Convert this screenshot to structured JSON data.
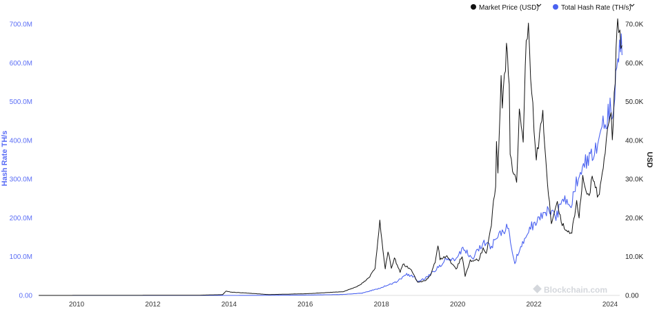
{
  "chart_data": {
    "type": "line",
    "grid": false,
    "legend_position": "top-right",
    "watermark": "Blockchain.com",
    "colors": {
      "price": "#111111",
      "hash": "#4a62f0",
      "left_axis_text": "#5b6ef5",
      "right_axis_text": "#222222",
      "x_axis_text": "#333333"
    },
    "x_axis": {
      "ticks": [
        "2010",
        "2012",
        "2014",
        "2016",
        "2018",
        "2020",
        "2022",
        "2024"
      ],
      "range": [
        "2009-01-03",
        "2024-05-01"
      ]
    },
    "left_axis": {
      "label": "Hash Rate TH/s",
      "ticks": [
        "0.00",
        "100.0M",
        "200.0M",
        "300.0M",
        "400.0M",
        "500.0M",
        "600.0M",
        "700.0M"
      ],
      "range": [
        0,
        700000000
      ]
    },
    "right_axis": {
      "label": "USD",
      "ticks": [
        "0.00",
        "10.0K",
        "20.0K",
        "30.0K",
        "40.0K",
        "50.0K",
        "60.0K",
        "70.0K"
      ],
      "range": [
        0,
        70000
      ]
    },
    "series": [
      {
        "name": "Market Price (USD)",
        "axis": "right",
        "points": [
          [
            "2009-01-03",
            0
          ],
          [
            "2013-03-01",
            40
          ],
          [
            "2013-11-01",
            200
          ],
          [
            "2013-12-04",
            1150
          ],
          [
            "2014-01-15",
            850
          ],
          [
            "2014-06-01",
            640
          ],
          [
            "2015-01-15",
            220
          ],
          [
            "2016-01-01",
            430
          ],
          [
            "2016-12-31",
            960
          ],
          [
            "2017-06-01",
            2500
          ],
          [
            "2017-09-01",
            4500
          ],
          [
            "2017-11-01",
            7000
          ],
          [
            "2017-12-17",
            19300
          ],
          [
            "2018-01-15",
            12000
          ],
          [
            "2018-02-06",
            7000
          ],
          [
            "2018-03-05",
            11500
          ],
          [
            "2018-04-06",
            6800
          ],
          [
            "2018-05-05",
            9700
          ],
          [
            "2018-06-29",
            5900
          ],
          [
            "2018-07-25",
            8200
          ],
          [
            "2018-10-15",
            6500
          ],
          [
            "2018-12-15",
            3300
          ],
          [
            "2019-03-01",
            3900
          ],
          [
            "2019-04-15",
            5200
          ],
          [
            "2019-05-30",
            8700
          ],
          [
            "2019-06-26",
            12800
          ],
          [
            "2019-07-16",
            9500
          ],
          [
            "2019-09-20",
            10100
          ],
          [
            "2019-12-17",
            6700
          ],
          [
            "2020-02-13",
            10300
          ],
          [
            "2020-03-13",
            4900
          ],
          [
            "2020-05-01",
            9000
          ],
          [
            "2020-07-20",
            9200
          ],
          [
            "2020-09-01",
            11900
          ],
          [
            "2020-10-01",
            10700
          ],
          [
            "2020-11-20",
            18500
          ],
          [
            "2020-12-31",
            29000
          ],
          [
            "2021-01-08",
            40700
          ],
          [
            "2021-01-22",
            31000
          ],
          [
            "2021-02-21",
            57500
          ],
          [
            "2021-03-05",
            48000
          ],
          [
            "2021-04-14",
            63500
          ],
          [
            "2021-05-10",
            56000
          ],
          [
            "2021-05-19",
            36000
          ],
          [
            "2021-06-22",
            31000
          ],
          [
            "2021-07-20",
            29800
          ],
          [
            "2021-08-15",
            47000
          ],
          [
            "2021-09-21",
            40500
          ],
          [
            "2021-10-20",
            66000
          ],
          [
            "2021-11-10",
            68000
          ],
          [
            "2021-12-01",
            57000
          ],
          [
            "2022-01-24",
            35000
          ],
          [
            "2022-03-28",
            47500
          ],
          [
            "2022-05-12",
            28700
          ],
          [
            "2022-06-18",
            18800
          ],
          [
            "2022-08-14",
            24300
          ],
          [
            "2022-09-20",
            19000
          ],
          [
            "2022-11-09",
            16500
          ],
          [
            "2022-12-31",
            16500
          ],
          [
            "2023-02-15",
            24000
          ],
          [
            "2023-03-10",
            20000
          ],
          [
            "2023-04-14",
            30500
          ],
          [
            "2023-06-15",
            25000
          ],
          [
            "2023-07-14",
            31500
          ],
          [
            "2023-09-11",
            25000
          ],
          [
            "2023-11-15",
            37000
          ],
          [
            "2023-12-08",
            44000
          ],
          [
            "2024-01-11",
            47000
          ],
          [
            "2024-01-23",
            39500
          ],
          [
            "2024-02-28",
            62000
          ],
          [
            "2024-03-14",
            73000
          ],
          [
            "2024-04-15",
            63000
          ],
          [
            "2024-04-25",
            64500
          ]
        ]
      },
      {
        "name": "Total Hash Rate (TH/s)",
        "axis": "left",
        "points": [
          [
            "2009-01-03",
            0
          ],
          [
            "2014-01-01",
            10000
          ],
          [
            "2015-01-01",
            300000
          ],
          [
            "2016-01-01",
            800000
          ],
          [
            "2017-01-01",
            2500000
          ],
          [
            "2017-07-01",
            6000000
          ],
          [
            "2018-01-01",
            20000000
          ],
          [
            "2018-06-01",
            36000000
          ],
          [
            "2018-08-31",
            55000000
          ],
          [
            "2018-11-15",
            46000000
          ],
          [
            "2018-12-15",
            36000000
          ],
          [
            "2019-03-01",
            45000000
          ],
          [
            "2019-06-01",
            65000000
          ],
          [
            "2019-09-01",
            90000000
          ],
          [
            "2019-12-01",
            95000000
          ],
          [
            "2020-03-01",
            120000000
          ],
          [
            "2020-05-20",
            95000000
          ],
          [
            "2020-07-01",
            115000000
          ],
          [
            "2020-10-01",
            140000000
          ],
          [
            "2020-11-10",
            120000000
          ],
          [
            "2021-01-01",
            145000000
          ],
          [
            "2021-04-15",
            175000000
          ],
          [
            "2021-05-13",
            160000000
          ],
          [
            "2021-06-10",
            115000000
          ],
          [
            "2021-07-03",
            85000000
          ],
          [
            "2021-08-01",
            110000000
          ],
          [
            "2021-09-15",
            135000000
          ],
          [
            "2021-12-01",
            175000000
          ],
          [
            "2022-03-01",
            200000000
          ],
          [
            "2022-06-01",
            220000000
          ],
          [
            "2022-08-01",
            205000000
          ],
          [
            "2022-10-15",
            250000000
          ],
          [
            "2022-12-24",
            230000000
          ],
          [
            "2023-02-01",
            280000000
          ],
          [
            "2023-05-01",
            340000000
          ],
          [
            "2023-07-15",
            370000000
          ],
          [
            "2023-09-15",
            400000000
          ],
          [
            "2023-11-15",
            450000000
          ],
          [
            "2024-01-01",
            480000000
          ],
          [
            "2024-01-15",
            440000000
          ],
          [
            "2024-02-15",
            540000000
          ],
          [
            "2024-03-15",
            600000000
          ],
          [
            "2024-04-01",
            620000000
          ],
          [
            "2024-04-18",
            680000000
          ],
          [
            "2024-04-25",
            620000000
          ]
        ]
      }
    ]
  }
}
